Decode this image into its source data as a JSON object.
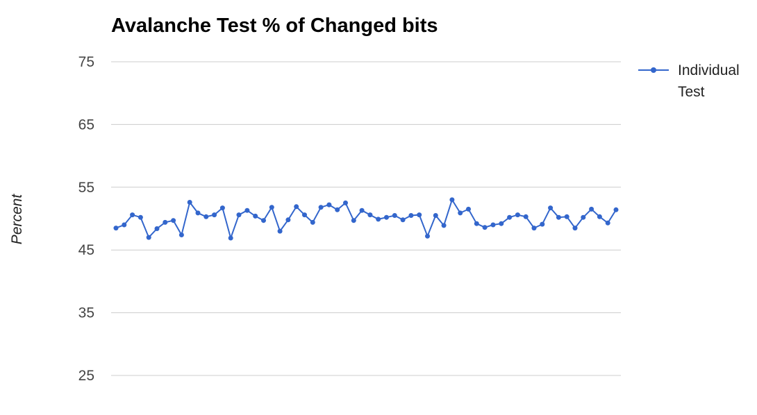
{
  "chart_data": {
    "type": "line",
    "title": "Avalanche Test % of Changed bits",
    "xlabel": "",
    "ylabel": "Percent",
    "ylim": [
      25,
      75
    ],
    "yticks": [
      "25",
      "35",
      "45",
      "55",
      "65",
      "75"
    ],
    "grid": true,
    "legend_position": "right",
    "colors": {
      "series": "#3366cc",
      "grid": "#cccccc"
    },
    "series": [
      {
        "name": "Individual Test",
        "legend_lines": [
          "Individual",
          "Test"
        ],
        "values": [
          48.5,
          49.0,
          50.6,
          50.2,
          47.0,
          48.4,
          49.4,
          49.7,
          47.4,
          52.6,
          50.9,
          50.3,
          50.6,
          51.7,
          46.9,
          50.6,
          51.3,
          50.4,
          49.7,
          51.8,
          48.0,
          49.8,
          51.9,
          50.6,
          49.4,
          51.8,
          52.2,
          51.4,
          52.5,
          49.7,
          51.3,
          50.6,
          49.9,
          50.2,
          50.5,
          49.8,
          50.5,
          50.6,
          47.2,
          50.5,
          48.9,
          53.0,
          50.9,
          51.5,
          49.2,
          48.6,
          49.0,
          49.2,
          50.2,
          50.6,
          50.3,
          48.5,
          49.1,
          51.7,
          50.2,
          50.3,
          48.5,
          50.2,
          51.5,
          50.3,
          49.3,
          51.4
        ]
      }
    ]
  }
}
